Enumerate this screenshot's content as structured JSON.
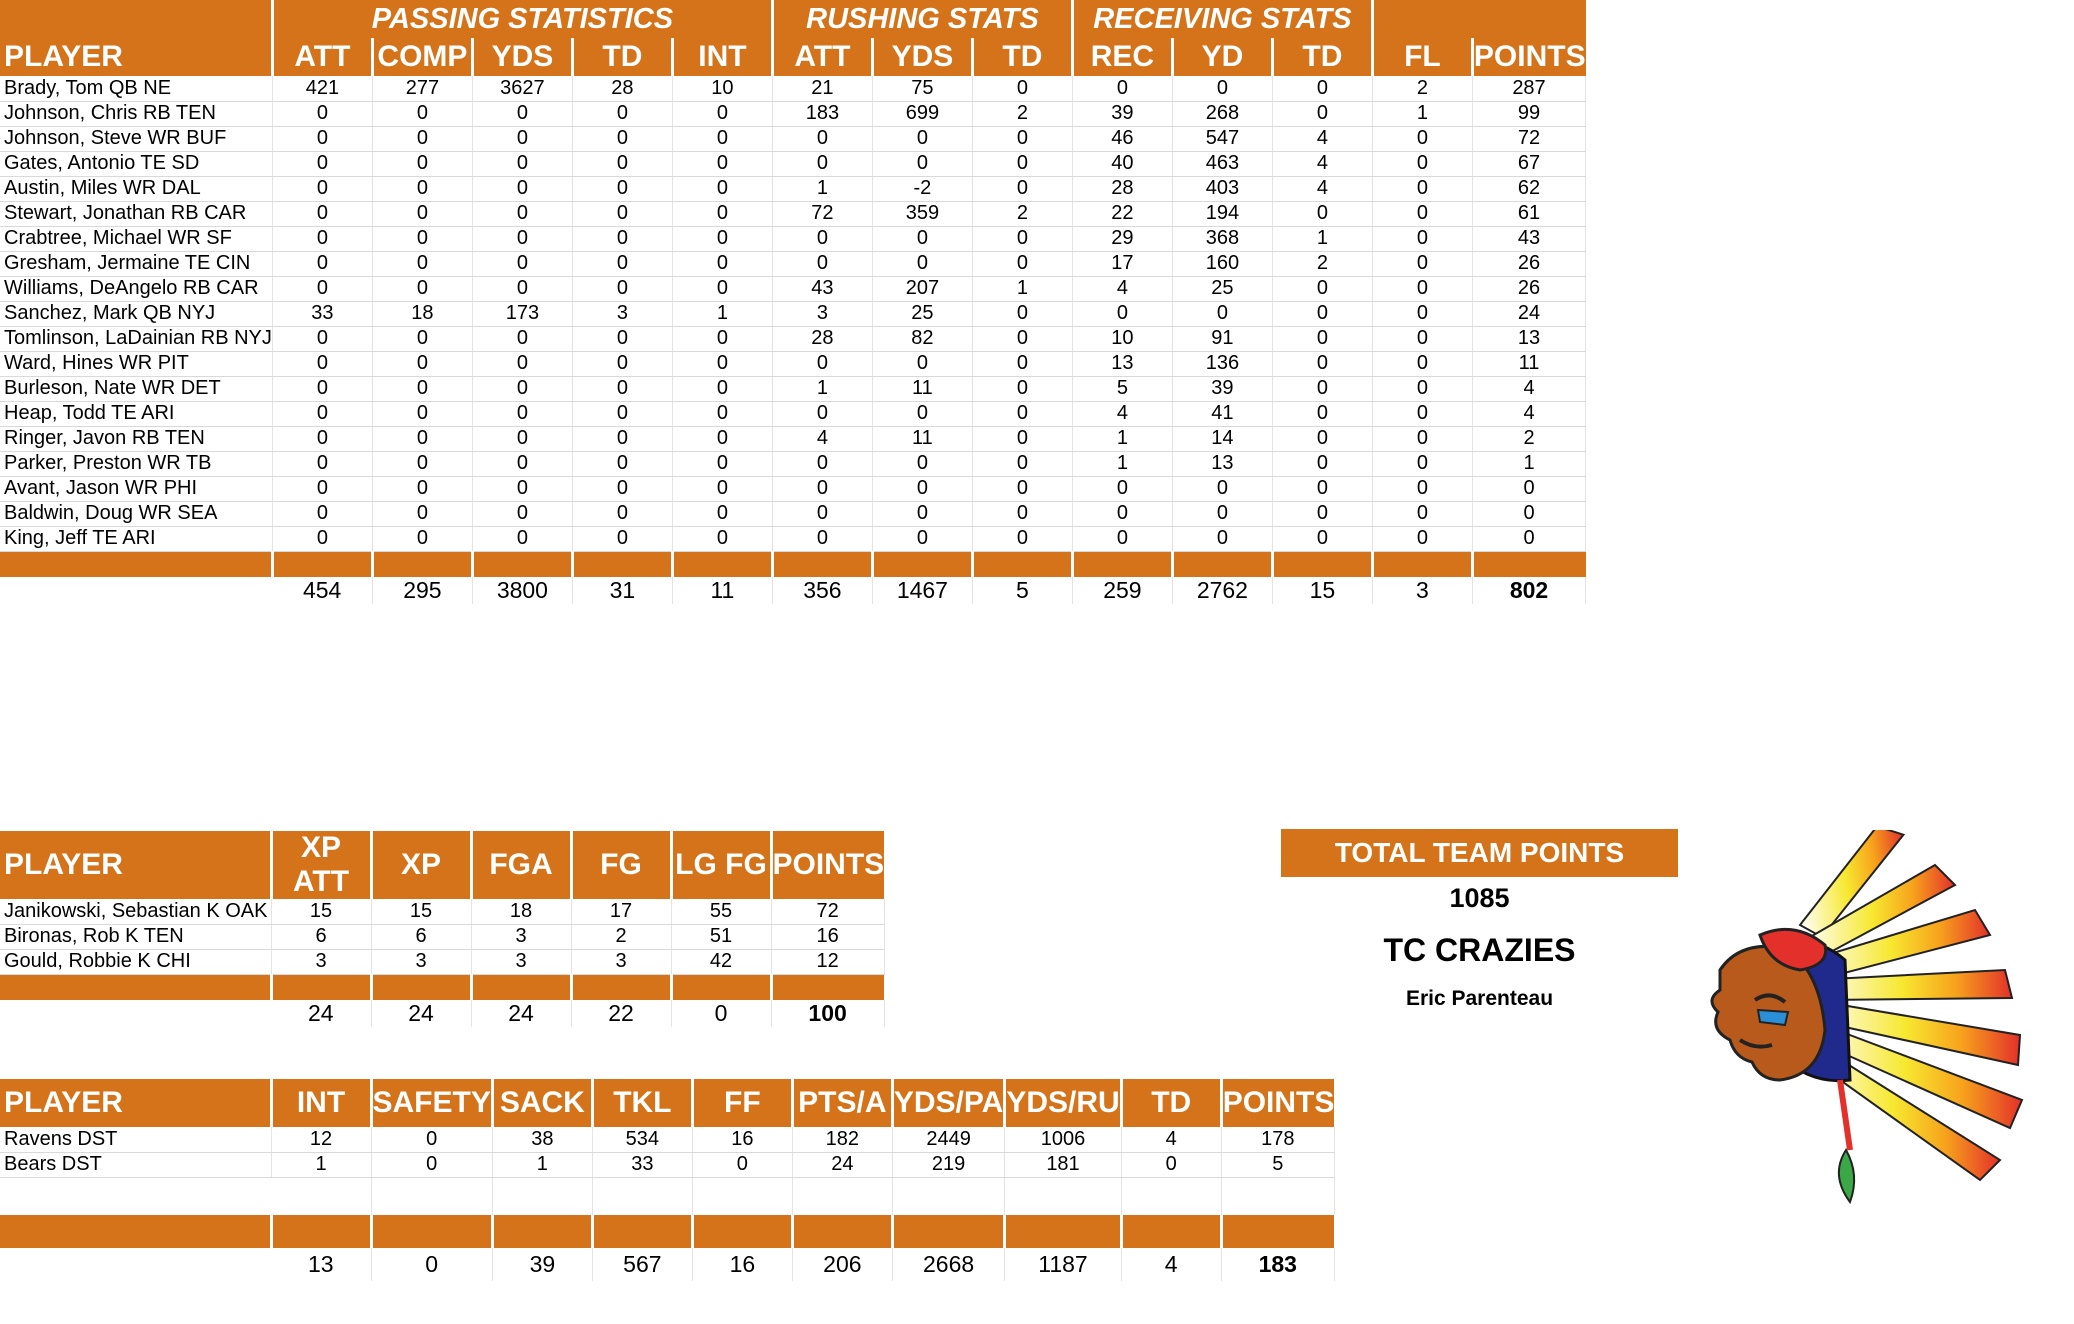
{
  "main": {
    "groups": [
      "PASSING STATISTICS",
      "RUSHING STATS",
      "RECEIVING STATS"
    ],
    "headers": [
      "PLAYER",
      "ATT",
      "COMP",
      "YDS",
      "TD",
      "INT",
      "ATT",
      "YDS",
      "TD",
      "REC",
      "YD",
      "TD",
      "FL",
      "POINTS"
    ],
    "rows": [
      [
        "Brady, Tom QB NE",
        "421",
        "277",
        "3627",
        "28",
        "10",
        "21",
        "75",
        "0",
        "0",
        "0",
        "0",
        "2",
        "287"
      ],
      [
        "Johnson, Chris RB TEN",
        "0",
        "0",
        "0",
        "0",
        "0",
        "183",
        "699",
        "2",
        "39",
        "268",
        "0",
        "1",
        "99"
      ],
      [
        "Johnson, Steve WR BUF",
        "0",
        "0",
        "0",
        "0",
        "0",
        "0",
        "0",
        "0",
        "46",
        "547",
        "4",
        "0",
        "72"
      ],
      [
        "Gates, Antonio TE SD",
        "0",
        "0",
        "0",
        "0",
        "0",
        "0",
        "0",
        "0",
        "40",
        "463",
        "4",
        "0",
        "67"
      ],
      [
        "Austin, Miles WR DAL",
        "0",
        "0",
        "0",
        "0",
        "0",
        "1",
        "-2",
        "0",
        "28",
        "403",
        "4",
        "0",
        "62"
      ],
      [
        "Stewart, Jonathan RB CAR",
        "0",
        "0",
        "0",
        "0",
        "0",
        "72",
        "359",
        "2",
        "22",
        "194",
        "0",
        "0",
        "61"
      ],
      [
        "Crabtree, Michael WR SF",
        "0",
        "0",
        "0",
        "0",
        "0",
        "0",
        "0",
        "0",
        "29",
        "368",
        "1",
        "0",
        "43"
      ],
      [
        "Gresham, Jermaine TE CIN",
        "0",
        "0",
        "0",
        "0",
        "0",
        "0",
        "0",
        "0",
        "17",
        "160",
        "2",
        "0",
        "26"
      ],
      [
        "Williams, DeAngelo RB CAR",
        "0",
        "0",
        "0",
        "0",
        "0",
        "43",
        "207",
        "1",
        "4",
        "25",
        "0",
        "0",
        "26"
      ],
      [
        "Sanchez, Mark QB NYJ",
        "33",
        "18",
        "173",
        "3",
        "1",
        "3",
        "25",
        "0",
        "0",
        "0",
        "0",
        "0",
        "24"
      ],
      [
        "Tomlinson, LaDainian RB NYJ",
        "0",
        "0",
        "0",
        "0",
        "0",
        "28",
        "82",
        "0",
        "10",
        "91",
        "0",
        "0",
        "13"
      ],
      [
        "Ward, Hines WR PIT",
        "0",
        "0",
        "0",
        "0",
        "0",
        "0",
        "0",
        "0",
        "13",
        "136",
        "0",
        "0",
        "11"
      ],
      [
        "Burleson, Nate WR DET",
        "0",
        "0",
        "0",
        "0",
        "0",
        "1",
        "11",
        "0",
        "5",
        "39",
        "0",
        "0",
        "4"
      ],
      [
        "Heap, Todd TE ARI",
        "0",
        "0",
        "0",
        "0",
        "0",
        "0",
        "0",
        "0",
        "4",
        "41",
        "0",
        "0",
        "4"
      ],
      [
        "Ringer, Javon RB TEN",
        "0",
        "0",
        "0",
        "0",
        "0",
        "4",
        "11",
        "0",
        "1",
        "14",
        "0",
        "0",
        "2"
      ],
      [
        "Parker, Preston WR TB",
        "0",
        "0",
        "0",
        "0",
        "0",
        "0",
        "0",
        "0",
        "1",
        "13",
        "0",
        "0",
        "1"
      ],
      [
        "Avant, Jason WR PHI",
        "0",
        "0",
        "0",
        "0",
        "0",
        "0",
        "0",
        "0",
        "0",
        "0",
        "0",
        "0",
        "0"
      ],
      [
        "Baldwin, Doug WR SEA",
        "0",
        "0",
        "0",
        "0",
        "0",
        "0",
        "0",
        "0",
        "0",
        "0",
        "0",
        "0",
        "0"
      ],
      [
        "King, Jeff TE ARI",
        "0",
        "0",
        "0",
        "0",
        "0",
        "0",
        "0",
        "0",
        "0",
        "0",
        "0",
        "0",
        "0"
      ]
    ],
    "totals": [
      "",
      "454",
      "295",
      "3800",
      "31",
      "11",
      "356",
      "1467",
      "5",
      "259",
      "2762",
      "15",
      "3",
      "802"
    ]
  },
  "kickers": {
    "headers": [
      "PLAYER",
      "XP ATT",
      "XP",
      "FGA",
      "FG",
      "LG FG",
      "POINTS"
    ],
    "rows": [
      [
        "Janikowski, Sebastian K OAK",
        "15",
        "15",
        "18",
        "17",
        "55",
        "72"
      ],
      [
        "Bironas, Rob K TEN",
        "6",
        "6",
        "3",
        "2",
        "51",
        "16"
      ],
      [
        "Gould, Robbie K CHI",
        "3",
        "3",
        "3",
        "3",
        "42",
        "12"
      ]
    ],
    "totals": [
      "",
      "24",
      "24",
      "24",
      "22",
      "0",
      "100"
    ]
  },
  "defense": {
    "headers": [
      "PLAYER",
      "INT",
      "SAFETY",
      "SACK",
      "TKL",
      "FF",
      "PTS/A",
      "YDS/PA",
      "YDS/RU",
      "TD",
      "POINTS"
    ],
    "rows": [
      [
        "Ravens DST",
        "12",
        "0",
        "38",
        "534",
        "16",
        "182",
        "2449",
        "1006",
        "4",
        "178"
      ],
      [
        "Bears DST",
        "1",
        "0",
        "1",
        "33",
        "0",
        "24",
        "219",
        "181",
        "0",
        "5"
      ]
    ],
    "totals": [
      "",
      "13",
      "0",
      "39",
      "567",
      "16",
      "206",
      "2668",
      "1187",
      "4",
      "183"
    ]
  },
  "team": {
    "title": "TOTAL TEAM POINTS",
    "points": "1085",
    "name": "TC CRAZIES",
    "owner": "Eric Parenteau"
  },
  "logo": {
    "icon": "chief-headdress-logo",
    "colors": {
      "feather_tip": "#e3302a",
      "feather_mid": "#f7a21c",
      "feather_base": "#f7e830",
      "skin": "#b85a1c"
    }
  }
}
